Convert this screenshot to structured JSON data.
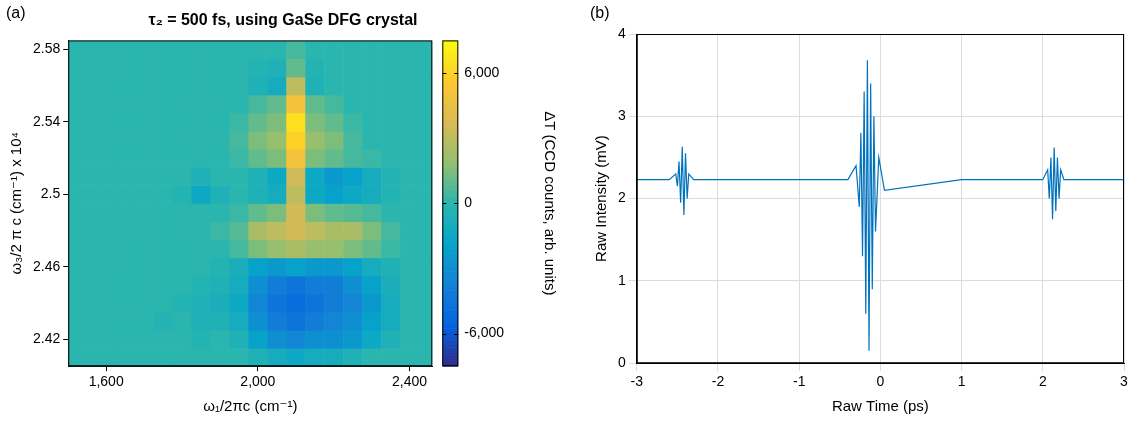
{
  "chart_data": [
    {
      "panel": "(a)",
      "type": "heatmap",
      "title": "τ₂ = 500 fs, using GaSe DFG crystal",
      "x_label": "ω₁/2πc (cm⁻¹)",
      "y_label": "ω₃/2 π c (cm⁻¹) x 10⁴",
      "x": [
        1500,
        1550,
        1600,
        1650,
        1700,
        1750,
        1800,
        1850,
        1900,
        1950,
        2000,
        2050,
        2100,
        2150,
        2200,
        2250,
        2300,
        2350,
        2400,
        2450
      ],
      "y": [
        2.41,
        2.42,
        2.43,
        2.44,
        2.45,
        2.46,
        2.47,
        2.48,
        2.49,
        2.5,
        2.51,
        2.52,
        2.53,
        2.54,
        2.55,
        2.56,
        2.57,
        2.58
      ],
      "cells": [
        [
          0,
          0,
          0,
          0,
          0,
          0,
          0,
          0,
          0,
          0,
          -500,
          -1000,
          -1500,
          -1000,
          -1000,
          -500,
          0,
          0,
          0,
          0
        ],
        [
          0,
          0,
          0,
          0,
          0,
          0,
          0,
          -300,
          0,
          -500,
          -2000,
          -3000,
          -3500,
          -3000,
          -3000,
          -2500,
          -1500,
          -500,
          0,
          0
        ],
        [
          0,
          0,
          0,
          0,
          0,
          -300,
          0,
          -500,
          -500,
          -1000,
          -3000,
          -4000,
          -4500,
          -4000,
          -3500,
          -3000,
          -2000,
          -1000,
          0,
          0
        ],
        [
          0,
          0,
          0,
          0,
          0,
          0,
          -300,
          -500,
          -800,
          -1500,
          -3500,
          -4500,
          -5000,
          -4500,
          -4000,
          -3500,
          -2500,
          -1000,
          0,
          0
        ],
        [
          0,
          0,
          0,
          0,
          0,
          0,
          0,
          -300,
          -500,
          -1000,
          -3000,
          -4000,
          -4500,
          -4000,
          -4000,
          -3000,
          -2000,
          -800,
          0,
          0
        ],
        [
          0,
          0,
          0,
          0,
          0,
          0,
          0,
          0,
          -300,
          -800,
          -2000,
          -2500,
          -2000,
          -2500,
          -2500,
          -2000,
          -1000,
          -500,
          0,
          0
        ],
        [
          0,
          0,
          0,
          0,
          0,
          0,
          0,
          0,
          0,
          500,
          1500,
          2000,
          2500,
          2000,
          2000,
          1500,
          1000,
          300,
          0,
          0
        ],
        [
          0,
          0,
          0,
          0,
          0,
          0,
          0,
          0,
          300,
          800,
          2500,
          3000,
          3500,
          3000,
          2500,
          2500,
          1500,
          500,
          0,
          0
        ],
        [
          0,
          0,
          0,
          0,
          0,
          0,
          0,
          0,
          0,
          300,
          1000,
          1500,
          3500,
          1500,
          1000,
          800,
          500,
          0,
          0,
          0
        ],
        [
          0,
          0,
          0,
          0,
          0,
          0,
          -300,
          -1500,
          -500,
          0,
          -500,
          -1000,
          3000,
          -1500,
          -2000,
          -1500,
          -1000,
          -300,
          0,
          0
        ],
        [
          0,
          0,
          0,
          0,
          0,
          0,
          0,
          -500,
          0,
          0,
          -500,
          -1500,
          3500,
          -1500,
          -2500,
          -2000,
          -1000,
          -300,
          0,
          0
        ],
        [
          0,
          0,
          0,
          0,
          0,
          0,
          0,
          0,
          0,
          300,
          1000,
          1500,
          5000,
          1500,
          1000,
          500,
          300,
          0,
          0,
          0
        ],
        [
          0,
          0,
          0,
          0,
          0,
          0,
          0,
          0,
          0,
          500,
          1500,
          2000,
          6000,
          2000,
          1500,
          500,
          0,
          0,
          0,
          0
        ],
        [
          0,
          0,
          0,
          0,
          0,
          0,
          0,
          0,
          0,
          300,
          1000,
          1500,
          6500,
          1500,
          1000,
          300,
          0,
          0,
          0,
          0
        ],
        [
          0,
          0,
          0,
          0,
          0,
          0,
          0,
          0,
          0,
          0,
          500,
          1000,
          5000,
          1000,
          500,
          0,
          0,
          0,
          0,
          0
        ],
        [
          0,
          0,
          0,
          0,
          0,
          0,
          0,
          0,
          0,
          0,
          -500,
          -1000,
          3000,
          -500,
          0,
          0,
          0,
          0,
          0,
          0
        ],
        [
          0,
          0,
          0,
          0,
          0,
          0,
          0,
          0,
          0,
          0,
          -300,
          -500,
          1000,
          -300,
          0,
          0,
          0,
          0,
          0,
          0
        ],
        [
          0,
          0,
          0,
          0,
          0,
          0,
          0,
          0,
          0,
          0,
          0,
          0,
          500,
          0,
          0,
          0,
          0,
          0,
          0,
          0
        ]
      ],
      "xlim": [
        1500,
        2460
      ],
      "xticks": [
        {
          "value": 1600,
          "label": "1,600"
        },
        {
          "value": 2000,
          "label": "2,000"
        },
        {
          "value": 2400,
          "label": "2,400"
        }
      ],
      "ylim": [
        2.405,
        2.585
      ],
      "yticks": [
        2.42,
        2.46,
        2.5,
        2.54,
        2.58
      ],
      "grid": false,
      "colorbar": {
        "label": "ΔT (CCD counts, arb. units)",
        "range": [
          -7500,
          7500
        ],
        "ticks": [
          {
            "value": -6000,
            "label": "-6,000"
          },
          0,
          {
            "value": 6000,
            "label": "6,000"
          }
        ]
      }
    },
    {
      "panel": "(b)",
      "type": "line",
      "x_label": "Raw Time (ps)",
      "y_label": "Raw Intensity (mV)",
      "x": [
        -3,
        -2.6,
        -2.52,
        -2.5,
        -2.48,
        -2.46,
        -2.44,
        -2.42,
        -2.4,
        -2.38,
        -2.36,
        -2.3,
        -1,
        -0.4,
        -0.3,
        -0.26,
        -0.24,
        -0.22,
        -0.2,
        -0.18,
        -0.16,
        -0.14,
        -0.12,
        -0.1,
        -0.08,
        -0.06,
        -0.02,
        0.05,
        1,
        2,
        2.06,
        2.08,
        2.1,
        2.12,
        2.14,
        2.16,
        2.18,
        2.2,
        2.22,
        2.26,
        2.4,
        3
      ],
      "values": [
        2.23,
        2.23,
        2.3,
        2.15,
        2.45,
        1.95,
        2.63,
        1.8,
        2.55,
        2.0,
        2.3,
        2.23,
        2.23,
        2.23,
        2.4,
        1.9,
        2.8,
        1.3,
        3.3,
        0.6,
        3.68,
        0.15,
        3.4,
        0.9,
        3.0,
        1.6,
        2.5,
        2.1,
        2.23,
        2.23,
        2.35,
        2.0,
        2.5,
        1.75,
        2.62,
        1.85,
        2.5,
        2.0,
        2.35,
        2.23,
        2.23,
        2.23
      ],
      "color": "#0072bd",
      "xlim": [
        -3,
        3
      ],
      "xticks": [
        -3,
        -2,
        -1,
        0,
        1,
        2,
        3
      ],
      "ylim": [
        0,
        4
      ],
      "yticks": [
        0,
        1,
        2,
        3,
        4
      ],
      "grid": true
    }
  ]
}
